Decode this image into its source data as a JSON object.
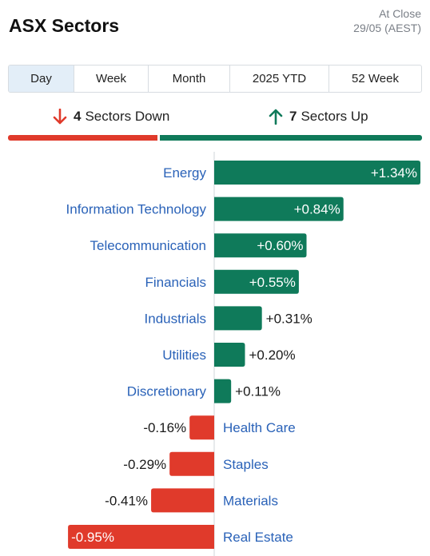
{
  "header": {
    "title": "ASX Sectors",
    "status_line1": "At Close",
    "status_line2": "29/05 (AEST)"
  },
  "tabs": [
    {
      "label": "Day",
      "active": true
    },
    {
      "label": "Week",
      "active": false
    },
    {
      "label": "Month",
      "active": false
    },
    {
      "label": "2025 YTD",
      "active": false
    },
    {
      "label": "52 Week",
      "active": false
    }
  ],
  "summary": {
    "down_count": "4",
    "down_text": "Sectors Down",
    "up_count": "7",
    "up_text": "Sectors Up"
  },
  "colors": {
    "positive": "#0f7a5a",
    "negative": "#e03a2b",
    "label": "#2a62b8"
  },
  "chart_data": {
    "type": "bar",
    "orientation": "horizontal",
    "categories": [
      "Energy",
      "Information Technology",
      "Telecommunication",
      "Financials",
      "Industrials",
      "Utilities",
      "Discretionary",
      "Health Care",
      "Staples",
      "Materials",
      "Real Estate"
    ],
    "values": [
      1.34,
      0.84,
      0.6,
      0.55,
      0.31,
      0.2,
      0.11,
      -0.16,
      -0.29,
      -0.41,
      -0.95
    ],
    "value_labels": [
      "+1.34%",
      "+0.84%",
      "+0.60%",
      "+0.55%",
      "+0.31%",
      "+0.20%",
      "+0.11%",
      "-0.16%",
      "-0.29%",
      "-0.41%",
      "-0.95%"
    ],
    "title": "",
    "xlabel": "",
    "ylabel": ""
  }
}
